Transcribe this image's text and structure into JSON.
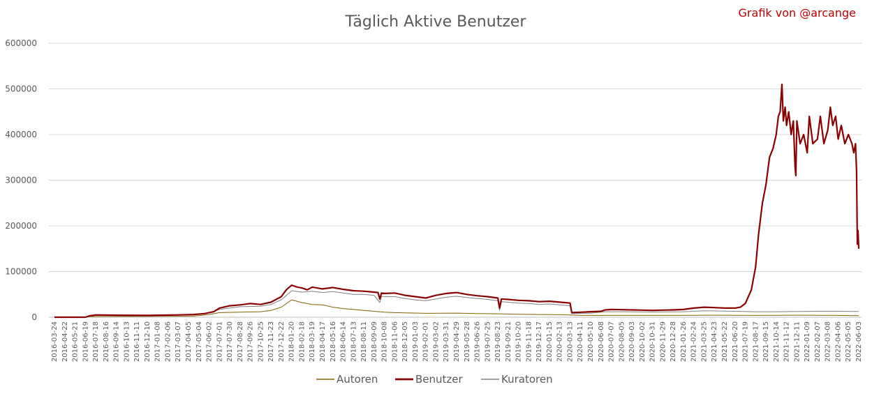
{
  "chart_data": {
    "type": "line",
    "title": "Täglich Aktive Benutzer",
    "credit": "Grafik von @arcange",
    "xlabel": "",
    "ylabel": "",
    "ylim": [
      0,
      600000
    ],
    "yticks": [
      0,
      100000,
      200000,
      300000,
      400000,
      500000,
      600000
    ],
    "grid": true,
    "legend_position": "bottom",
    "x_tick_labels": [
      "2016-03-24",
      "2016-04-22",
      "2016-05-21",
      "2016-06-19",
      "2016-07-18",
      "2016-08-16",
      "2016-09-14",
      "2016-10-13",
      "2016-11-11",
      "2016-12-10",
      "2017-01-08",
      "2017-02-06",
      "2017-03-07",
      "2017-04-05",
      "2017-05-04",
      "2017-06-02",
      "2017-07-01",
      "2017-07-30",
      "2017-08-28",
      "2017-09-26",
      "2017-10-25",
      "2017-11-23",
      "2017-12-22",
      "2018-01-20",
      "2018-02-18",
      "2018-03-19",
      "2018-04-17",
      "2018-05-16",
      "2018-06-14",
      "2018-07-13",
      "2018-08-11",
      "2018-09-09",
      "2018-10-08",
      "2018-11-06",
      "2018-12-05",
      "2019-01-03",
      "2019-02-01",
      "2019-03-02",
      "2019-03-31",
      "2019-04-29",
      "2019-05-28",
      "2019-06-26",
      "2019-07-25",
      "2019-08-23",
      "2019-09-21",
      "2019-10-20",
      "2019-11-18",
      "2019-12-17",
      "2020-01-15",
      "2020-02-13",
      "2020-03-13",
      "2020-04-11",
      "2020-05-10",
      "2020-06-08",
      "2020-07-07",
      "2020-08-05",
      "2020-09-03",
      "2020-10-02",
      "2020-10-31",
      "2020-11-29",
      "2020-12-28",
      "2021-01-26",
      "2021-02-24",
      "2021-03-25",
      "2021-04-23",
      "2021-05-22",
      "2021-06-20",
      "2021-07-19",
      "2021-08-17",
      "2021-09-15",
      "2021-10-14",
      "2021-11-12",
      "2021-12-11",
      "2022-01-09",
      "2022-02-07",
      "2022-03-08",
      "2022-04-06",
      "2022-05-05",
      "2022-06-03"
    ],
    "series": [
      {
        "name": "Benutzer",
        "color": "#8b0000",
        "stroke_width": 2.2,
        "points": [
          [
            "2016-03-24",
            0
          ],
          [
            "2016-06-19",
            0
          ],
          [
            "2016-07-01",
            3000
          ],
          [
            "2016-07-18",
            5000
          ],
          [
            "2016-09-14",
            4500
          ],
          [
            "2016-12-10",
            4000
          ],
          [
            "2017-03-07",
            5000
          ],
          [
            "2017-04-20",
            6000
          ],
          [
            "2017-05-20",
            8000
          ],
          [
            "2017-06-15",
            12000
          ],
          [
            "2017-07-01",
            20000
          ],
          [
            "2017-07-30",
            25000
          ],
          [
            "2017-08-28",
            27000
          ],
          [
            "2017-09-26",
            30000
          ],
          [
            "2017-10-25",
            28000
          ],
          [
            "2017-11-23",
            33000
          ],
          [
            "2017-12-22",
            45000
          ],
          [
            "2018-01-05",
            60000
          ],
          [
            "2018-01-20",
            70000
          ],
          [
            "2018-02-05",
            66000
          ],
          [
            "2018-02-18",
            64000
          ],
          [
            "2018-03-05",
            60000
          ],
          [
            "2018-03-19",
            66000
          ],
          [
            "2018-04-17",
            62000
          ],
          [
            "2018-05-16",
            65000
          ],
          [
            "2018-06-14",
            61000
          ],
          [
            "2018-07-13",
            58000
          ],
          [
            "2018-08-11",
            57000
          ],
          [
            "2018-09-09",
            55000
          ],
          [
            "2018-09-20",
            54000
          ],
          [
            "2018-09-25",
            40000
          ],
          [
            "2018-09-30",
            53000
          ],
          [
            "2018-10-08",
            52000
          ],
          [
            "2018-11-06",
            53000
          ],
          [
            "2018-12-05",
            48000
          ],
          [
            "2019-01-03",
            45000
          ],
          [
            "2019-02-01",
            42000
          ],
          [
            "2019-03-02",
            48000
          ],
          [
            "2019-03-31",
            52000
          ],
          [
            "2019-04-29",
            54000
          ],
          [
            "2019-05-28",
            50000
          ],
          [
            "2019-06-26",
            47000
          ],
          [
            "2019-07-25",
            45000
          ],
          [
            "2019-08-23",
            42000
          ],
          [
            "2019-08-28",
            20000
          ],
          [
            "2019-09-02",
            40000
          ],
          [
            "2019-09-21",
            39000
          ],
          [
            "2019-10-20",
            37000
          ],
          [
            "2019-11-18",
            36000
          ],
          [
            "2019-12-17",
            34000
          ],
          [
            "2020-01-15",
            35000
          ],
          [
            "2020-02-13",
            33000
          ],
          [
            "2020-03-13",
            31000
          ],
          [
            "2020-03-18",
            10000
          ],
          [
            "2020-04-11",
            11000
          ],
          [
            "2020-05-10",
            12000
          ],
          [
            "2020-06-08",
            13000
          ],
          [
            "2020-06-20",
            16000
          ],
          [
            "2020-07-07",
            17000
          ],
          [
            "2020-08-05",
            16500
          ],
          [
            "2020-09-03",
            16000
          ],
          [
            "2020-10-02",
            15500
          ],
          [
            "2020-10-31",
            15000
          ],
          [
            "2020-11-29",
            15500
          ],
          [
            "2020-12-28",
            16000
          ],
          [
            "2021-01-26",
            17000
          ],
          [
            "2021-02-24",
            20000
          ],
          [
            "2021-03-25",
            22000
          ],
          [
            "2021-04-23",
            21000
          ],
          [
            "2021-05-22",
            20000
          ],
          [
            "2021-06-20",
            20000
          ],
          [
            "2021-07-05",
            22000
          ],
          [
            "2021-07-19",
            30000
          ],
          [
            "2021-08-05",
            60000
          ],
          [
            "2021-08-17",
            110000
          ],
          [
            "2021-08-25",
            180000
          ],
          [
            "2021-09-05",
            250000
          ],
          [
            "2021-09-15",
            290000
          ],
          [
            "2021-09-25",
            350000
          ],
          [
            "2021-10-05",
            370000
          ],
          [
            "2021-10-14",
            400000
          ],
          [
            "2021-10-20",
            440000
          ],
          [
            "2021-10-25",
            450000
          ],
          [
            "2021-10-30",
            510000
          ],
          [
            "2021-11-03",
            430000
          ],
          [
            "2021-11-08",
            460000
          ],
          [
            "2021-11-12",
            420000
          ],
          [
            "2021-11-18",
            450000
          ],
          [
            "2021-11-25",
            400000
          ],
          [
            "2021-12-01",
            430000
          ],
          [
            "2021-12-06",
            330000
          ],
          [
            "2021-12-08",
            310000
          ],
          [
            "2021-12-11",
            430000
          ],
          [
            "2021-12-20",
            380000
          ],
          [
            "2021-12-30",
            400000
          ],
          [
            "2022-01-09",
            360000
          ],
          [
            "2022-01-15",
            440000
          ],
          [
            "2022-01-25",
            380000
          ],
          [
            "2022-02-07",
            390000
          ],
          [
            "2022-02-15",
            440000
          ],
          [
            "2022-02-25",
            380000
          ],
          [
            "2022-03-08",
            410000
          ],
          [
            "2022-03-15",
            460000
          ],
          [
            "2022-03-22",
            420000
          ],
          [
            "2022-03-30",
            440000
          ],
          [
            "2022-04-06",
            390000
          ],
          [
            "2022-04-15",
            420000
          ],
          [
            "2022-04-25",
            380000
          ],
          [
            "2022-05-05",
            400000
          ],
          [
            "2022-05-15",
            380000
          ],
          [
            "2022-05-20",
            360000
          ],
          [
            "2022-05-25",
            380000
          ],
          [
            "2022-05-28",
            320000
          ],
          [
            "2022-05-30",
            160000
          ],
          [
            "2022-06-01",
            190000
          ],
          [
            "2022-06-03",
            150000
          ]
        ]
      },
      {
        "name": "Kuratoren",
        "color": "#7f7f7f",
        "stroke_width": 1,
        "points": [
          [
            "2016-03-24",
            0
          ],
          [
            "2016-06-19",
            0
          ],
          [
            "2016-07-01",
            2000
          ],
          [
            "2016-07-18",
            4000
          ],
          [
            "2016-12-10",
            3500
          ],
          [
            "2017-04-20",
            5000
          ],
          [
            "2017-06-02",
            10000
          ],
          [
            "2017-07-01",
            17000
          ],
          [
            "2017-08-28",
            23000
          ],
          [
            "2017-10-25",
            24000
          ],
          [
            "2017-11-23",
            28000
          ],
          [
            "2017-12-22",
            38000
          ],
          [
            "2018-01-20",
            58000
          ],
          [
            "2018-02-18",
            55000
          ],
          [
            "2018-03-19",
            57000
          ],
          [
            "2018-04-17",
            54000
          ],
          [
            "2018-05-16",
            56000
          ],
          [
            "2018-06-14",
            53000
          ],
          [
            "2018-07-13",
            50000
          ],
          [
            "2018-08-11",
            50000
          ],
          [
            "2018-09-09",
            48000
          ],
          [
            "2018-09-25",
            32000
          ],
          [
            "2018-09-30",
            46000
          ],
          [
            "2018-10-08",
            45000
          ],
          [
            "2018-11-06",
            45000
          ],
          [
            "2018-12-05",
            41000
          ],
          [
            "2019-01-03",
            38000
          ],
          [
            "2019-02-01",
            36000
          ],
          [
            "2019-03-31",
            44000
          ],
          [
            "2019-04-29",
            46000
          ],
          [
            "2019-05-28",
            43000
          ],
          [
            "2019-06-26",
            41000
          ],
          [
            "2019-07-25",
            39000
          ],
          [
            "2019-08-23",
            36000
          ],
          [
            "2019-08-28",
            15000
          ],
          [
            "2019-09-02",
            34000
          ],
          [
            "2019-09-21",
            33000
          ],
          [
            "2019-10-20",
            31000
          ],
          [
            "2019-11-18",
            30000
          ],
          [
            "2019-12-17",
            28000
          ],
          [
            "2020-01-15",
            29000
          ],
          [
            "2020-02-13",
            27000
          ],
          [
            "2020-03-13",
            25000
          ],
          [
            "2020-03-18",
            8000
          ],
          [
            "2020-05-10",
            9000
          ],
          [
            "2020-06-20",
            12000
          ],
          [
            "2020-08-05",
            12000
          ],
          [
            "2020-10-31",
            11500
          ],
          [
            "2021-01-26",
            12000
          ],
          [
            "2021-03-25",
            14000
          ],
          [
            "2021-05-22",
            13500
          ],
          [
            "2021-06-20",
            13000
          ],
          [
            "2021-08-17",
            12000
          ],
          [
            "2021-10-14",
            12000
          ],
          [
            "2021-12-11",
            12500
          ],
          [
            "2022-02-07",
            13000
          ],
          [
            "2022-04-06",
            13000
          ],
          [
            "2022-06-03",
            12500
          ]
        ]
      },
      {
        "name": "Autoren",
        "color": "#7f6000",
        "stroke_width": 1,
        "points": [
          [
            "2016-03-24",
            0
          ],
          [
            "2016-06-19",
            0
          ],
          [
            "2016-07-01",
            1500
          ],
          [
            "2016-12-10",
            2000
          ],
          [
            "2017-04-20",
            2500
          ],
          [
            "2017-06-02",
            6000
          ],
          [
            "2017-07-01",
            10000
          ],
          [
            "2017-08-28",
            11000
          ],
          [
            "2017-10-25",
            12000
          ],
          [
            "2017-11-23",
            15000
          ],
          [
            "2017-12-22",
            22000
          ],
          [
            "2018-01-20",
            38000
          ],
          [
            "2018-02-18",
            32000
          ],
          [
            "2018-03-19",
            28000
          ],
          [
            "2018-04-17",
            27000
          ],
          [
            "2018-05-16",
            22000
          ],
          [
            "2018-06-14",
            19000
          ],
          [
            "2018-07-13",
            17000
          ],
          [
            "2018-08-11",
            15000
          ],
          [
            "2018-09-09",
            13000
          ],
          [
            "2018-10-08",
            11000
          ],
          [
            "2018-11-06",
            10000
          ],
          [
            "2018-12-05",
            9500
          ],
          [
            "2019-02-01",
            8500
          ],
          [
            "2019-04-29",
            9000
          ],
          [
            "2019-06-26",
            8000
          ],
          [
            "2019-08-23",
            7500
          ],
          [
            "2019-10-20",
            6500
          ],
          [
            "2019-12-17",
            6000
          ],
          [
            "2020-02-13",
            5500
          ],
          [
            "2020-03-13",
            5000
          ],
          [
            "2020-04-11",
            4000
          ],
          [
            "2020-08-05",
            4000
          ],
          [
            "2020-12-28",
            4000
          ],
          [
            "2021-04-23",
            4500
          ],
          [
            "2021-08-17",
            4000
          ],
          [
            "2021-12-11",
            4500
          ],
          [
            "2022-04-06",
            4000
          ],
          [
            "2022-06-03",
            3500
          ]
        ]
      }
    ],
    "legend_order": [
      "Autoren",
      "Benutzer",
      "Kuratoren"
    ]
  }
}
